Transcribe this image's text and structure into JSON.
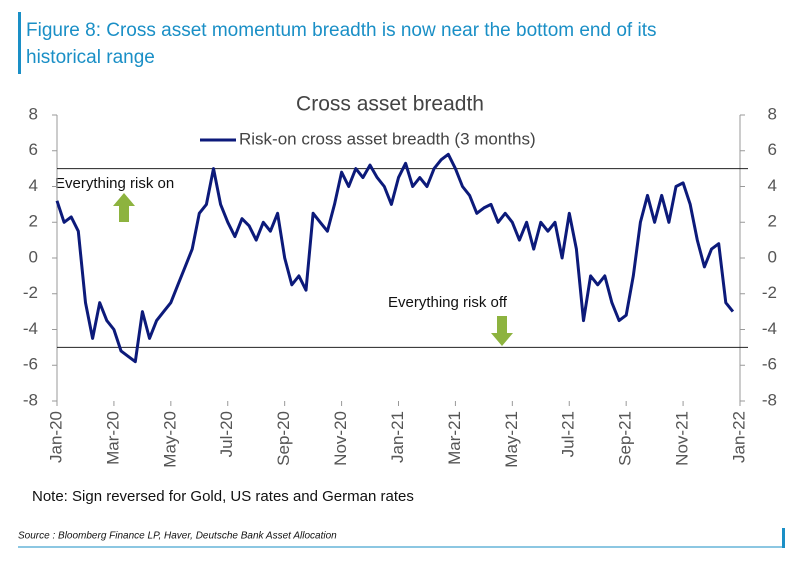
{
  "figure_title": "Figure 8: Cross asset momentum breadth is now near the bottom end of its historical range",
  "note": "Note: Sign reversed for Gold, US rates and German rates",
  "source": "Source : Bloomberg Finance LP, Haver, Deutsche Bank Asset Allocation",
  "chart_data": {
    "type": "line",
    "title": "Cross asset breadth",
    "categories": [
      "Jan-20",
      null,
      null,
      null,
      null,
      null,
      null,
      null,
      "Mar-20",
      null,
      null,
      null,
      null,
      null,
      null,
      null,
      "May-20",
      null,
      null,
      null,
      null,
      null,
      null,
      null,
      "Jul-20",
      null,
      null,
      null,
      null,
      null,
      null,
      null,
      "Sep-20",
      null,
      null,
      null,
      null,
      null,
      null,
      null,
      "Nov-20",
      null,
      null,
      null,
      null,
      null,
      null,
      null,
      "Jan-21",
      null,
      null,
      null,
      null,
      null,
      null,
      null,
      "Mar-21",
      null,
      null,
      null,
      null,
      null,
      null,
      null,
      "May-21",
      null,
      null,
      null,
      null,
      null,
      null,
      null,
      "Jul-21",
      null,
      null,
      null,
      null,
      null,
      null,
      null,
      "Sep-21",
      null,
      null,
      null,
      null,
      null,
      null,
      null,
      "Nov-21",
      null,
      null,
      null,
      null,
      null,
      null,
      null,
      "Jan-22"
    ],
    "series": [
      {
        "name": "Risk-on cross asset breadth (3 months)",
        "color": "#0c1a7a",
        "values": [
          3.2,
          2.0,
          2.3,
          1.5,
          -2.5,
          -4.5,
          -2.5,
          -3.5,
          -4.0,
          -5.2,
          -5.5,
          -5.8,
          -3.0,
          -4.5,
          -3.5,
          -3.0,
          -2.5,
          -1.5,
          -0.5,
          0.5,
          2.5,
          3.0,
          5.0,
          3.0,
          2.0,
          1.2,
          2.2,
          1.8,
          1.0,
          2.0,
          1.5,
          2.5,
          0.0,
          -1.5,
          -1.0,
          -1.8,
          2.5,
          2.0,
          1.5,
          3.0,
          4.8,
          4.0,
          5.0,
          4.5,
          5.2,
          4.5,
          4.0,
          3.0,
          4.5,
          5.3,
          4.0,
          4.5,
          4.0,
          5.0,
          5.5,
          5.8,
          5.0,
          4.0,
          3.5,
          2.5,
          2.8,
          3.0,
          2.0,
          2.5,
          2.0,
          1.0,
          2.0,
          0.5,
          2.0,
          1.5,
          2.0,
          0.0,
          2.5,
          0.5,
          -3.5,
          -1.0,
          -1.5,
          -1.0,
          -2.5,
          -3.5,
          -3.2,
          -1.0,
          2.0,
          3.5,
          2.0,
          3.5,
          2.0,
          4.0,
          4.2,
          3.0,
          1.0,
          -0.5,
          0.5,
          0.8,
          -2.5,
          -3.0,
          null
        ]
      }
    ],
    "ylim": [
      -8,
      8
    ],
    "yticks": [
      -8,
      -6,
      -4,
      -2,
      0,
      2,
      4,
      6,
      8
    ],
    "y2lim": [
      -8,
      8
    ],
    "y2ticks": [
      -8,
      -6,
      -4,
      -2,
      0,
      2,
      4,
      6,
      8
    ],
    "hlines": [
      5,
      -5
    ],
    "annotations": [
      "Everything risk on",
      "Everything risk off"
    ],
    "legend": "top"
  }
}
